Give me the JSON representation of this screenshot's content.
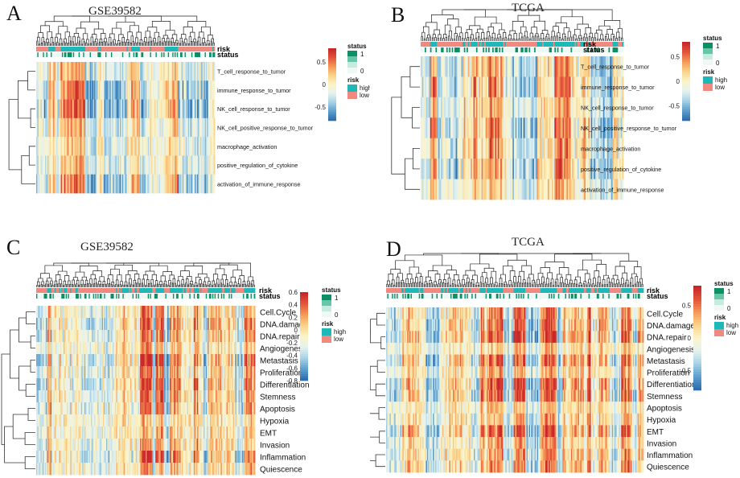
{
  "colors": {
    "scale": [
      "#2c6fb0",
      "#5fa2cf",
      "#a9d3e6",
      "#e6f2f0",
      "#fbf4c6",
      "#fbd38a",
      "#f69a5a",
      "#e4553a",
      "#c8272a"
    ],
    "risk_high": "#1fb8b8",
    "risk_low": "#f08a80",
    "status_1": "#0e8f63",
    "status_mid": "#67c6a8",
    "status_low": "#c7ebe0",
    "status_0": "#eef9f6"
  },
  "chart_data": [
    {
      "type": "heatmap",
      "panel": "A",
      "title": "GSE39582",
      "annotation_labels": [
        "risk",
        "status"
      ],
      "rows": [
        "T_cell_response_to_tumor",
        "immune_response_to_tumor",
        "NK_cell_response_to_tumor",
        "NK_cell_positive_response_to_tumor",
        "macrophage_activation",
        "positive_regulation_of_cytokine",
        "activation_of_immune_response"
      ],
      "colorbar_ticks": [
        "0.5",
        "0",
        "-0.5"
      ],
      "colorbar_range": [
        -0.8,
        0.8
      ],
      "legend_status_title": "status",
      "legend_status_ticks": [
        "1",
        "0"
      ],
      "legend_risk_title": "risk",
      "legend_risk_items": [
        "high",
        "low"
      ],
      "n_cols": 160,
      "seed": 11
    },
    {
      "type": "heatmap",
      "panel": "B",
      "title": "TCGA",
      "annotation_labels": [
        "risk",
        "status"
      ],
      "rows": [
        "T_cell_response_to_tumor",
        "immune_response_to_tumor",
        "NK_cell_response_to_tumor",
        "NK_cell_positive_response_to_tumor",
        "macrophage_activation",
        "positive_regulation_of_cytokine",
        "activation_of_immune_response"
      ],
      "colorbar_ticks": [
        "0.5",
        "0",
        "-0.5"
      ],
      "colorbar_range": [
        -0.8,
        0.8
      ],
      "legend_status_title": "status",
      "legend_status_ticks": [
        "1",
        "0"
      ],
      "legend_risk_title": "risk",
      "legend_risk_items": [
        "high",
        "low"
      ],
      "n_cols": 150,
      "seed": 23
    },
    {
      "type": "heatmap",
      "panel": "C",
      "title": "GSE39582",
      "annotation_labels": [
        "risk",
        "status"
      ],
      "rows": [
        "Cell.Cycle",
        "DNA.damage",
        "DNA.repair",
        "Angiogenesis",
        "Metastasis",
        "Proliferation",
        "Differentiation",
        "Stemness",
        "Apoptosis",
        "Hypoxia",
        "EMT",
        "Invasion",
        "Inflammation",
        "Quiescence"
      ],
      "colorbar_ticks": [
        "0.6",
        "0.4",
        "0.2",
        "0",
        "-0.2",
        "-0.4",
        "-0.6",
        "-0.8"
      ],
      "colorbar_range": [
        -0.8,
        0.6
      ],
      "legend_status_title": "status",
      "legend_status_ticks": [
        "1",
        "0"
      ],
      "legend_risk_title": "risk",
      "legend_risk_items": [
        "high",
        "low"
      ],
      "n_cols": 200,
      "seed": 37
    },
    {
      "type": "heatmap",
      "panel": "D",
      "title": "TCGA",
      "annotation_labels": [
        "risk",
        "status"
      ],
      "rows": [
        "Cell.Cycle",
        "DNA.damage",
        "DNA.repair",
        "Angiogenesis",
        "Metastasis",
        "Proliferation",
        "Differentiation",
        "Stemness",
        "Apoptosis",
        "Hypoxia",
        "EMT",
        "Invasion",
        "Inflammation",
        "Quiescence"
      ],
      "colorbar_ticks": [
        "0.5",
        "0",
        "-0.5"
      ],
      "colorbar_range": [
        -0.8,
        0.8
      ],
      "legend_status_title": "status",
      "legend_status_ticks": [
        "1",
        "0"
      ],
      "legend_risk_title": "risk",
      "legend_risk_items": [
        "high",
        "low"
      ],
      "n_cols": 220,
      "seed": 53
    }
  ]
}
